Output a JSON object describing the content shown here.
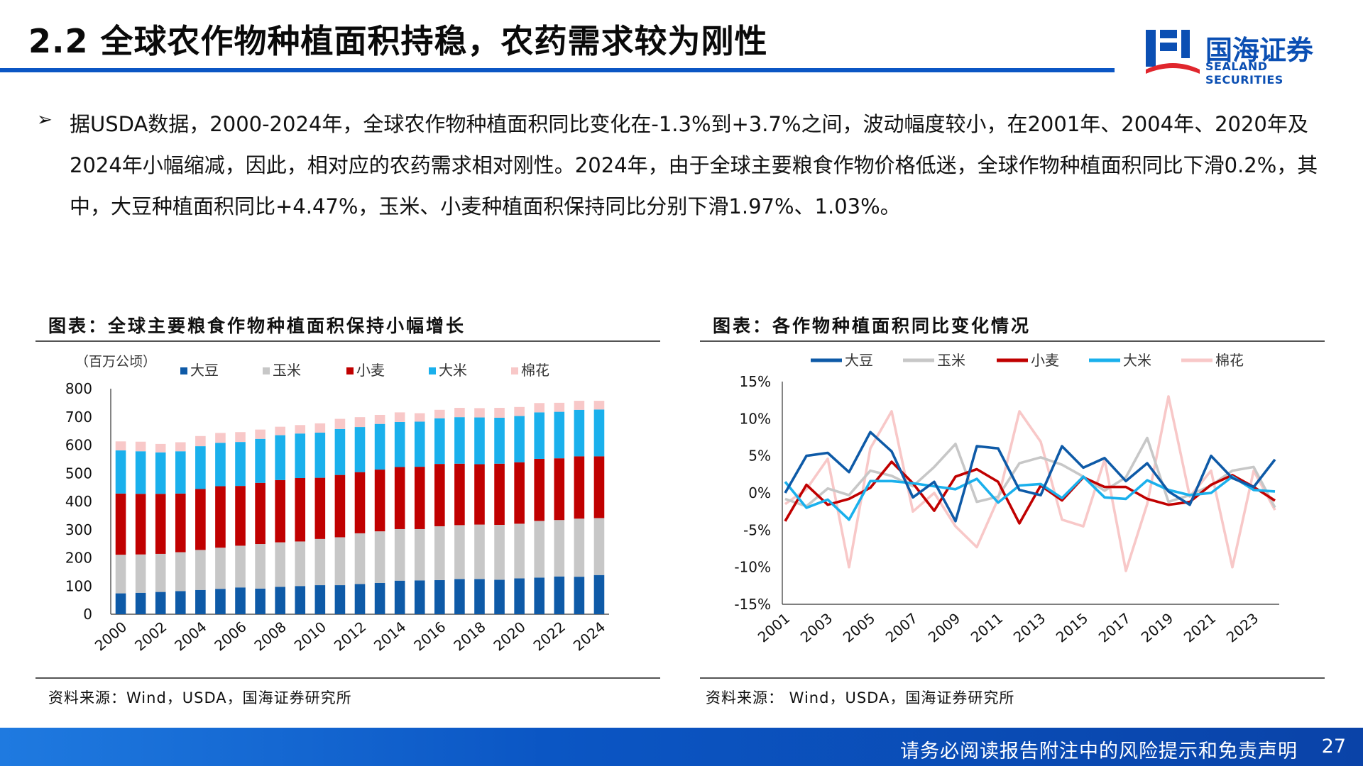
{
  "header": {
    "title": "2.2 全球农作物种植面积持稳，农药需求较为刚性",
    "logo_cn": "国海证券",
    "logo_en": "SEALAND SECURITIES"
  },
  "bullet": {
    "symbol": "➢",
    "text": "据USDA数据，2000-2024年，全球农作物种植面积同比变化在-1.3%到+3.7%之间，波动幅度较小，在2001年、2004年、2020年及2024年小幅缩减，因此，相对应的农药需求相对刚性。2024年，由于全球主要粮食作物价格低迷，全球作物种植面积同比下滑0.2%，其中，大豆种植面积同比+4.47%，玉米、小麦种植面积保持同比分别下滑1.97%、1.03%。"
  },
  "left_panel": {
    "title": "图表：全球主要粮食作物种植面积保持小幅增长",
    "source": "资料来源：Wind，USDA，国海证券研究所"
  },
  "right_panel": {
    "title": "图表：各作物种植面积同比变化情况",
    "source": "资料来源： Wind，USDA，国海证券研究所"
  },
  "footer": {
    "text": "请务必阅读报告附注中的风险提示和免责声明",
    "page": "27"
  },
  "colors": {
    "accent": "#0b56c4",
    "soybean": "#0e5aa7",
    "corn": "#c7c7c7",
    "wheat": "#c00000",
    "rice": "#1ab0ec",
    "cotton": "#f8c8c8"
  },
  "chart_data": [
    {
      "type": "bar",
      "stacked": true,
      "unit_label": "（百万公顷）",
      "x": [
        "2000",
        "2001",
        "2002",
        "2003",
        "2004",
        "2005",
        "2006",
        "2007",
        "2008",
        "2009",
        "2010",
        "2011",
        "2012",
        "2013",
        "2014",
        "2015",
        "2016",
        "2017",
        "2018",
        "2019",
        "2020",
        "2021",
        "2022",
        "2023",
        "2024"
      ],
      "x_tick_labels": [
        "2000",
        "2002",
        "2004",
        "2006",
        "2008",
        "2010",
        "2012",
        "2014",
        "2016",
        "2018",
        "2020",
        "2022",
        "2024"
      ],
      "ylim": [
        0,
        800
      ],
      "y_ticks": [
        0,
        100,
        200,
        300,
        400,
        500,
        600,
        700,
        800
      ],
      "grid": false,
      "legend_position": "top",
      "series": [
        {
          "name": "大豆",
          "values": [
            74,
            76,
            79,
            82,
            86,
            90,
            95,
            91,
            97,
            100,
            103,
            103,
            107,
            111,
            119,
            120,
            121,
            125,
            125,
            122,
            127,
            130,
            134,
            133,
            139
          ]
        },
        {
          "name": "玉米",
          "values": [
            137,
            136,
            135,
            138,
            142,
            146,
            148,
            158,
            158,
            158,
            164,
            170,
            180,
            183,
            183,
            182,
            191,
            191,
            193,
            195,
            194,
            201,
            200,
            206,
            202
          ]
        },
        {
          "name": "小麦",
          "values": [
            217,
            215,
            213,
            208,
            216,
            218,
            212,
            217,
            221,
            225,
            217,
            221,
            217,
            219,
            220,
            221,
            221,
            218,
            214,
            217,
            218,
            220,
            219,
            221,
            219
          ]
        },
        {
          "name": "大米",
          "values": [
            153,
            151,
            147,
            150,
            152,
            154,
            156,
            156,
            159,
            158,
            160,
            163,
            160,
            162,
            160,
            160,
            162,
            165,
            166,
            163,
            164,
            165,
            165,
            165,
            166
          ]
        },
        {
          "name": "棉花",
          "values": [
            32,
            34,
            30,
            32,
            36,
            35,
            35,
            33,
            30,
            30,
            33,
            36,
            35,
            32,
            34,
            30,
            30,
            33,
            33,
            35,
            32,
            33,
            32,
            32,
            31
          ]
        }
      ]
    },
    {
      "type": "line",
      "x": [
        "2001",
        "2002",
        "2003",
        "2004",
        "2005",
        "2006",
        "2007",
        "2008",
        "2009",
        "2010",
        "2011",
        "2012",
        "2013",
        "2014",
        "2015",
        "2016",
        "2017",
        "2018",
        "2019",
        "2020",
        "2021",
        "2022",
        "2023",
        "2024"
      ],
      "x_tick_labels": [
        "2001",
        "2003",
        "2005",
        "2007",
        "2009",
        "2011",
        "2013",
        "2015",
        "2017",
        "2019",
        "2021",
        "2023"
      ],
      "ylim": [
        -15,
        15
      ],
      "y_ticks": [
        -15,
        -10,
        -5,
        0,
        5,
        10,
        15
      ],
      "y_tick_labels": [
        "-15%",
        "-10%",
        "-5%",
        "0%",
        "5%",
        "10%",
        "15%"
      ],
      "grid": false,
      "legend_position": "top",
      "series": [
        {
          "name": "大豆",
          "values": [
            0.0,
            5.0,
            5.4,
            2.8,
            8.2,
            5.6,
            -0.6,
            1.5,
            -3.8,
            6.3,
            6.0,
            0.4,
            -0.3,
            6.3,
            3.4,
            4.7,
            1.6,
            4.0,
            0.2,
            -1.6,
            5.0,
            2.0,
            0.8,
            4.5
          ]
        },
        {
          "name": "玉米",
          "values": [
            -0.8,
            -1.8,
            0.6,
            -0.3,
            3.0,
            2.3,
            0.9,
            3.5,
            6.6,
            -1.2,
            -0.5,
            4.0,
            4.8,
            3.8,
            2.2,
            0.3,
            2.1,
            7.4,
            -1.2,
            -0.3,
            1.0,
            3.0,
            3.5,
            -1.97
          ]
        },
        {
          "name": "小麦",
          "values": [
            -3.8,
            1.1,
            -1.6,
            -0.8,
            0.7,
            4.2,
            1.3,
            -2.4,
            2.2,
            3.2,
            1.5,
            -4.1,
            1.0,
            -1.0,
            2.1,
            0.8,
            0.8,
            -0.8,
            -1.6,
            -1.2,
            1.1,
            2.4,
            0.8,
            -1.03
          ]
        },
        {
          "name": "大米",
          "values": [
            1.5,
            -2.0,
            -0.9,
            -3.6,
            1.6,
            1.6,
            1.3,
            0.9,
            0.5,
            1.9,
            -1.3,
            1.0,
            1.2,
            -0.7,
            2.2,
            -0.6,
            -0.8,
            1.7,
            0.4,
            -0.3,
            0.0,
            2.2,
            0.4,
            0.2
          ]
        },
        {
          "name": "棉花",
          "values": [
            -1.5,
            0.5,
            4.6,
            -10.0,
            6.0,
            11.0,
            -2.5,
            0.0,
            -4.5,
            -7.3,
            -0.8,
            11.0,
            6.9,
            -3.6,
            -4.5,
            4.5,
            -10.5,
            -1.5,
            13.0,
            -0.5,
            3.0,
            -10.0,
            3.0,
            -2.3
          ]
        }
      ]
    }
  ]
}
